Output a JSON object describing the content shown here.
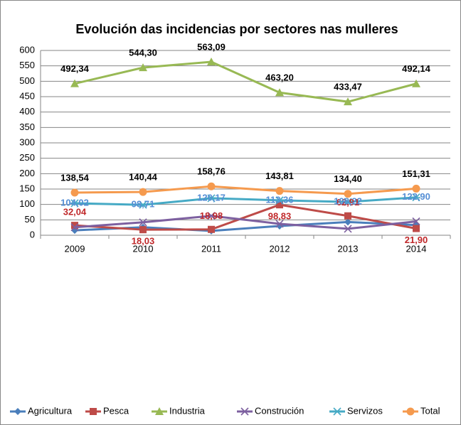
{
  "chart_data": {
    "type": "line",
    "title": "Evolución das incidencias por sectores nas mulleres",
    "categories": [
      "2009",
      "2010",
      "2011",
      "2012",
      "2013",
      "2014"
    ],
    "ylim": [
      0,
      600
    ],
    "yticks": [
      0,
      50,
      100,
      150,
      200,
      250,
      300,
      350,
      400,
      450,
      500,
      550,
      600
    ],
    "grid": true,
    "legend": "bottom",
    "series": [
      {
        "name": "Agricultura",
        "color": "#4a7ebb",
        "marker": "diamond",
        "values": [
          16,
          26,
          14,
          30,
          43,
          33
        ]
      },
      {
        "name": "Pesca",
        "color": "#be4b48",
        "marker": "square",
        "label_color": "#c0282a",
        "values": [
          32.04,
          18.03,
          18.98,
          98.83,
          62.91,
          21.9
        ],
        "value_labels": [
          "32,04",
          "18,03",
          "18,98",
          "98,83",
          "62,91",
          "21,90"
        ]
      },
      {
        "name": "Industria",
        "color": "#98b954",
        "marker": "triangle",
        "label_color": "#000000",
        "values": [
          492.34,
          544.3,
          563.09,
          463.2,
          433.47,
          492.14
        ],
        "value_labels": [
          "492,34",
          "544,30",
          "563,09",
          "463,20",
          "433,47",
          "492,14"
        ]
      },
      {
        "name": "Construción",
        "color": "#7d60a0",
        "marker": "x",
        "values": [
          26,
          42,
          63,
          37,
          21,
          45
        ]
      },
      {
        "name": "Servizos",
        "color": "#46aac5",
        "marker": "asterisk",
        "label_color": "#558ed5",
        "values": [
          104.02,
          98.71,
          120.17,
          113.36,
          108.22,
          122.9
        ],
        "value_labels": [
          "104,02",
          "98,71",
          "120,17",
          "113,36",
          "108,22",
          "122,90"
        ]
      },
      {
        "name": "Total",
        "color": "#f59a4e",
        "marker": "circle",
        "label_color": "#000000",
        "values": [
          138.54,
          140.44,
          158.76,
          143.81,
          134.4,
          151.31
        ],
        "value_labels": [
          "138,54",
          "140,44",
          "158,76",
          "143,81",
          "134,40",
          "151,31"
        ]
      }
    ]
  }
}
